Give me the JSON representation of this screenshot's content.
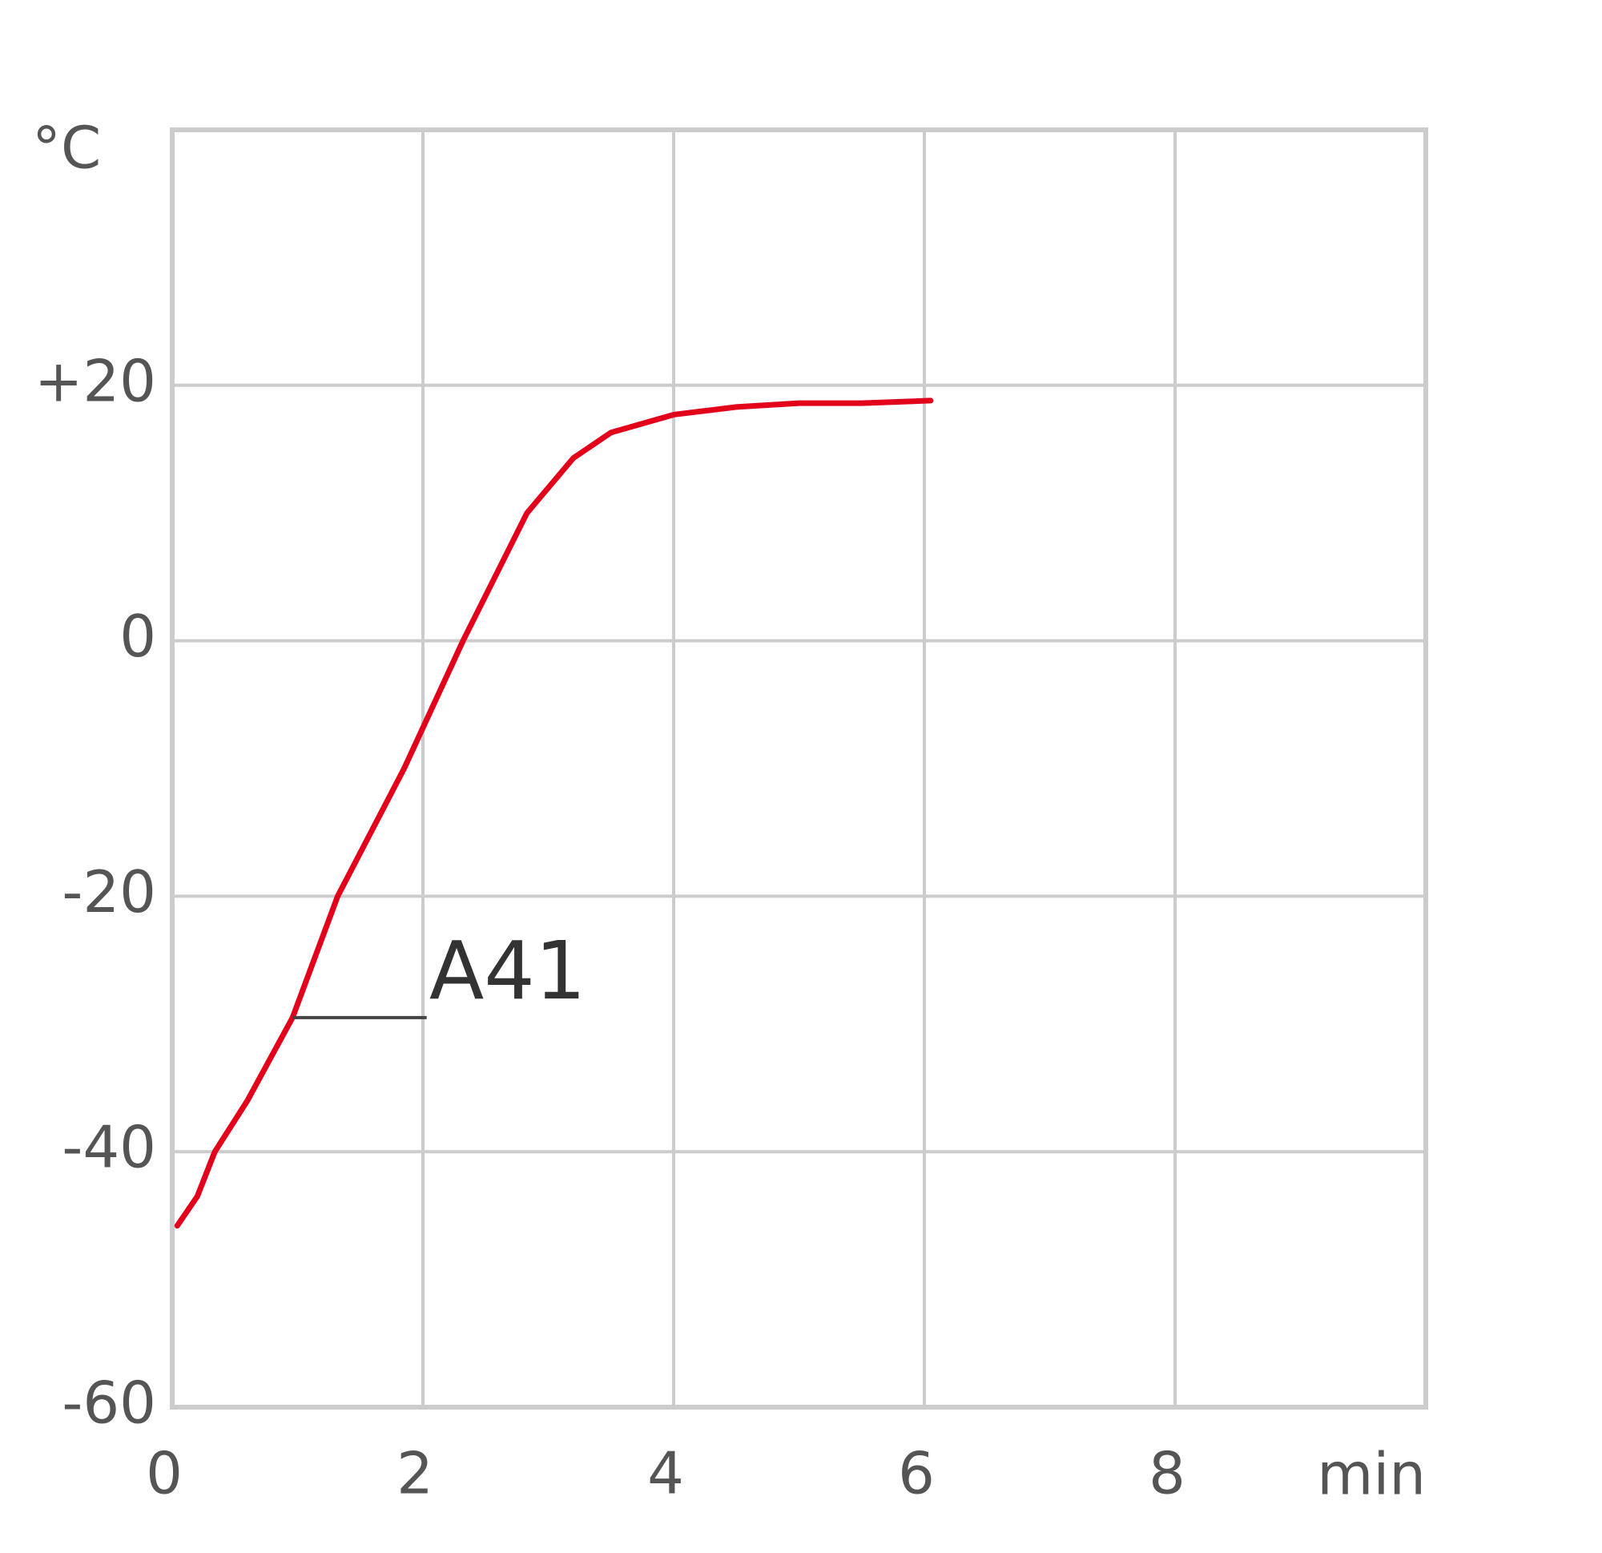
{
  "chart_data": {
    "type": "line",
    "y_label": "°C",
    "x_label": "min",
    "annotation": "A41",
    "x": [
      0.04,
      0.2,
      0.34,
      0.6,
      0.96,
      1.32,
      1.85,
      2.32,
      2.83,
      3.2,
      3.5,
      4,
      4.5,
      5,
      5.5,
      6.05
    ],
    "series": [
      {
        "name": "A41",
        "color": "#e3001b",
        "values": [
          -45.8,
          -43.5,
          -40,
          -36,
          -29.5,
          -20,
          -10,
          0,
          10,
          14.3,
          16.3,
          17.7,
          18.3,
          18.6,
          18.6,
          18.8
        ]
      }
    ],
    "xlim": [
      0,
      10
    ],
    "xticks": [
      0,
      2,
      4,
      6,
      8
    ],
    "ylim": [
      -60,
      40
    ],
    "yticks": [
      -60,
      -40,
      -20,
      0,
      {
        "value": 20,
        "label": "+20"
      }
    ],
    "grid": true
  }
}
